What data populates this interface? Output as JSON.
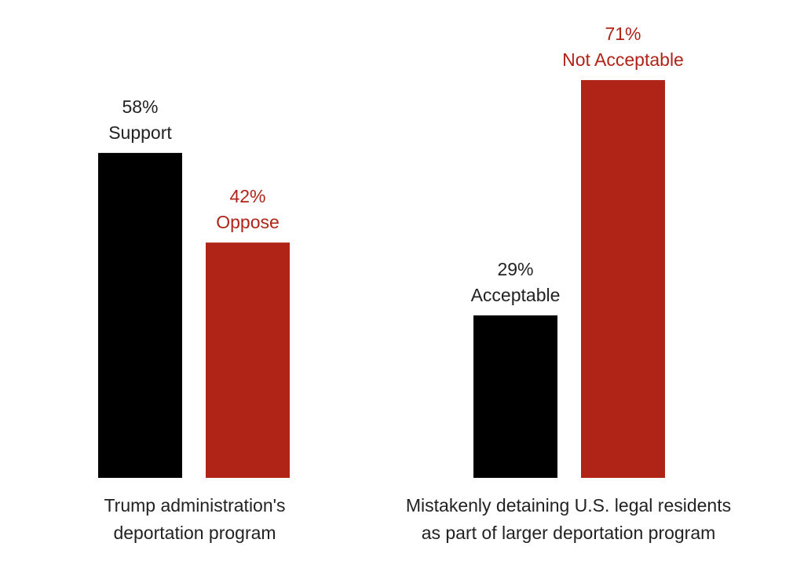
{
  "chart_data": {
    "type": "bar",
    "ylim": [
      0,
      100
    ],
    "grid": false,
    "legend": "none",
    "colors": {
      "dark": "#000000",
      "red": "#b02418"
    },
    "groups": [
      {
        "category": [
          "Trump administration's",
          "deportation program"
        ],
        "bars": [
          {
            "value": 58,
            "value_label": "58%",
            "label": "Support",
            "color": "dark"
          },
          {
            "value": 42,
            "value_label": "42%",
            "label": "Oppose",
            "color": "red"
          }
        ]
      },
      {
        "category": [
          "Mistakenly detaining U.S. legal residents",
          "as part of larger deportation program"
        ],
        "bars": [
          {
            "value": 29,
            "value_label": "29%",
            "label": "Acceptable",
            "color": "dark"
          },
          {
            "value": 71,
            "value_label": "71%",
            "label": "Not Acceptable",
            "color": "red"
          }
        ]
      }
    ]
  }
}
